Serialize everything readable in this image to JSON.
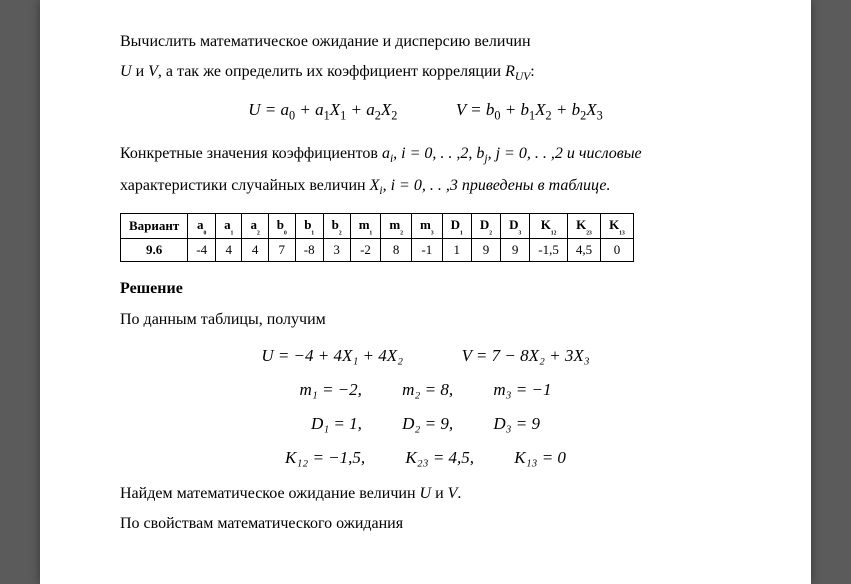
{
  "intro": {
    "line1": "Вычислить математическое ожидание и дисперсию величин",
    "line2_pre": "U",
    "line2_mid": " и ",
    "line2_v": "V",
    "line2_post": ", а так же определить их коэффициент корреляции ",
    "line2_r": "R",
    "line2_rsub": "UV",
    "line2_end": ":"
  },
  "formula1": {
    "u": "U = a",
    "u0": "0",
    "p1": " + a",
    "u1": "1",
    "x1": "X",
    "x1s": "1",
    "p2": " + a",
    "u2": "2",
    "x2": "X",
    "x2s": "2",
    "v": "V = b",
    "v0": "0",
    "vp1": " + b",
    "v1": "1",
    "vx2": "X",
    "vx2s": "2",
    "vp2": " + b",
    "v2": "2",
    "vx3": "X",
    "vx3s": "3"
  },
  "para2": {
    "pre": "Конкретные значения коэффициентов ",
    "ai": "a",
    "ais": "i",
    "mid1": ", i = 0, . . ,2,   ",
    "bj": "b",
    "bjs": "j",
    "mid2": ", j = 0, . . ,2 и числовые",
    "line2pre": "характеристики случайных величин ",
    "xi": "X",
    "xis": "i",
    "line2post": ", i = 0, . . ,3 приведены в таблице."
  },
  "table": {
    "headers": [
      "Вариант",
      "a₀",
      "a₁",
      "a₂",
      "b₀",
      "b₁",
      "b₂",
      "m₁",
      "m₂",
      "m₃",
      "D₁",
      "D₂",
      "D₃",
      "K₁₂",
      "K₂₃",
      "K₁₃"
    ],
    "row": [
      "9.6",
      "-4",
      "4",
      "4",
      "7",
      "-8",
      "3",
      "-2",
      "8",
      "-1",
      "1",
      "9",
      "9",
      "-1,5",
      "4,5",
      "0"
    ]
  },
  "section": "Решение",
  "para3": "По данным таблицы, получим",
  "eq_uv": {
    "u": "U = −4 + 4X₁ + 4X₂",
    "v": "V = 7 − 8X₂ + 3X₃"
  },
  "eq_m": {
    "m1l": "m₁ = −2,",
    "m2l": "m₂ = 8,",
    "m3l": "m₃ = −1"
  },
  "eq_d": {
    "d1": "D₁ = 1,",
    "d2": "D₂ = 9,",
    "d3": "D₃ = 9"
  },
  "eq_k": {
    "k12": "K₁₂ = −1,5,",
    "k23": "K₂₃ = 4,5,",
    "k13": "K₁₃ = 0"
  },
  "para4": {
    "pre": "Найдем математическое ожидание величин ",
    "u": "U",
    "mid": " и ",
    "v": "V",
    "end": "."
  },
  "para5": "По свойствам математического ожидания"
}
